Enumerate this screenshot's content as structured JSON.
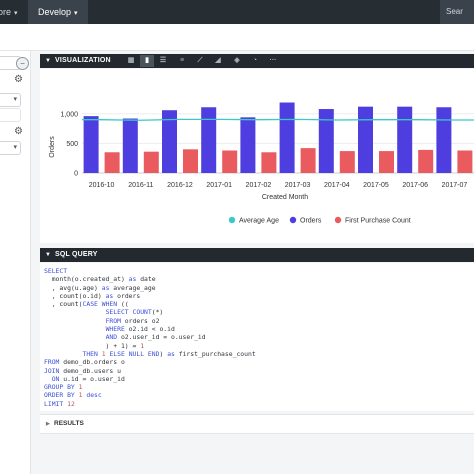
{
  "topbar": {
    "explore_label": "ore",
    "develop_label": "Develop",
    "search_label": "Sear"
  },
  "left_panel": {
    "minus_symbol": "−",
    "dropdown_caret": "▾",
    "gear_symbol": "⚙"
  },
  "visualization": {
    "header_label": "VISUALIZATION",
    "icons": [
      "table-icon",
      "bar-chart-icon",
      "column-chart-icon",
      "stacked-icon",
      "line-chart-icon",
      "area-chart-icon",
      "map-icon",
      "pie-chart-icon",
      "more-icon"
    ]
  },
  "chart_data": {
    "type": "bar",
    "xlabel": "Created Month",
    "ylabel": "Orders",
    "ylim": [
      0,
      1300
    ],
    "ytick_labels": [
      "0",
      "500",
      "1,000"
    ],
    "yticks": [
      0,
      500,
      1000
    ],
    "categories": [
      "2016-10",
      "2016-11",
      "2016-12",
      "2017-01",
      "2017-02",
      "2017-03",
      "2017-04",
      "2017-05",
      "2017-06",
      "2017-07"
    ],
    "series": [
      {
        "name": "Orders",
        "type": "bar",
        "color": "#4e3ee0",
        "values": [
          960,
          920,
          1060,
          1110,
          940,
          1190,
          1080,
          1120,
          1120,
          1110
        ]
      },
      {
        "name": "First Purchase Count",
        "type": "bar",
        "color": "#ea5b5f",
        "values": [
          350,
          360,
          400,
          380,
          350,
          420,
          370,
          370,
          390,
          380
        ]
      },
      {
        "name": "Average Age",
        "type": "line",
        "color": "#3ac8c8",
        "values": [
          900,
          890,
          905,
          905,
          900,
          905,
          895,
          900,
          900,
          895
        ]
      }
    ],
    "legend_position": "bottom",
    "grid": true
  },
  "sql": {
    "header_label": "SQL QUERY"
  },
  "results": {
    "label": "RESULTS"
  }
}
